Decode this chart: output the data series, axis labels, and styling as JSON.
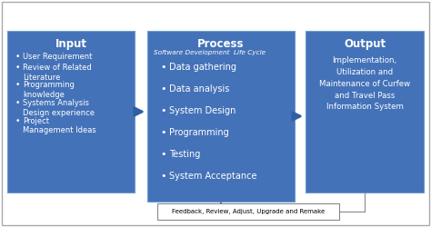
{
  "outer_bg": "#ffffff",
  "box_color": "#4472b8",
  "box_edge_color": "#5a8ad0",
  "text_color": "#ffffff",
  "feedback_box_color": "#ffffff",
  "feedback_text_color": "#000000",
  "arrow_color": "#2e5fa3",
  "title_fontsize": 8.5,
  "body_fontsize": 6.0,
  "subtitle_fontsize": 5.2,
  "input_title": "Input",
  "input_items": [
    "User Requirement",
    "Review of Related\nLiterature",
    "Programming\nknowledge",
    "Systems Analysis\nDesign experience",
    "Project\nManagement Ideas"
  ],
  "process_title": "Process",
  "process_subtitle": "Software Development  Life Cycle",
  "process_items": [
    "Data gathering",
    "Data analysis",
    "System Design",
    "Programming",
    "Testing",
    "System Acceptance"
  ],
  "output_title": "Output",
  "output_text": "Implementation,\nUtilization and\nMaintenance of Curfew\nand Travel Pass\nInformation System",
  "feedback_text": "Feedback, Review, Adjust, Upgrade and Remake"
}
